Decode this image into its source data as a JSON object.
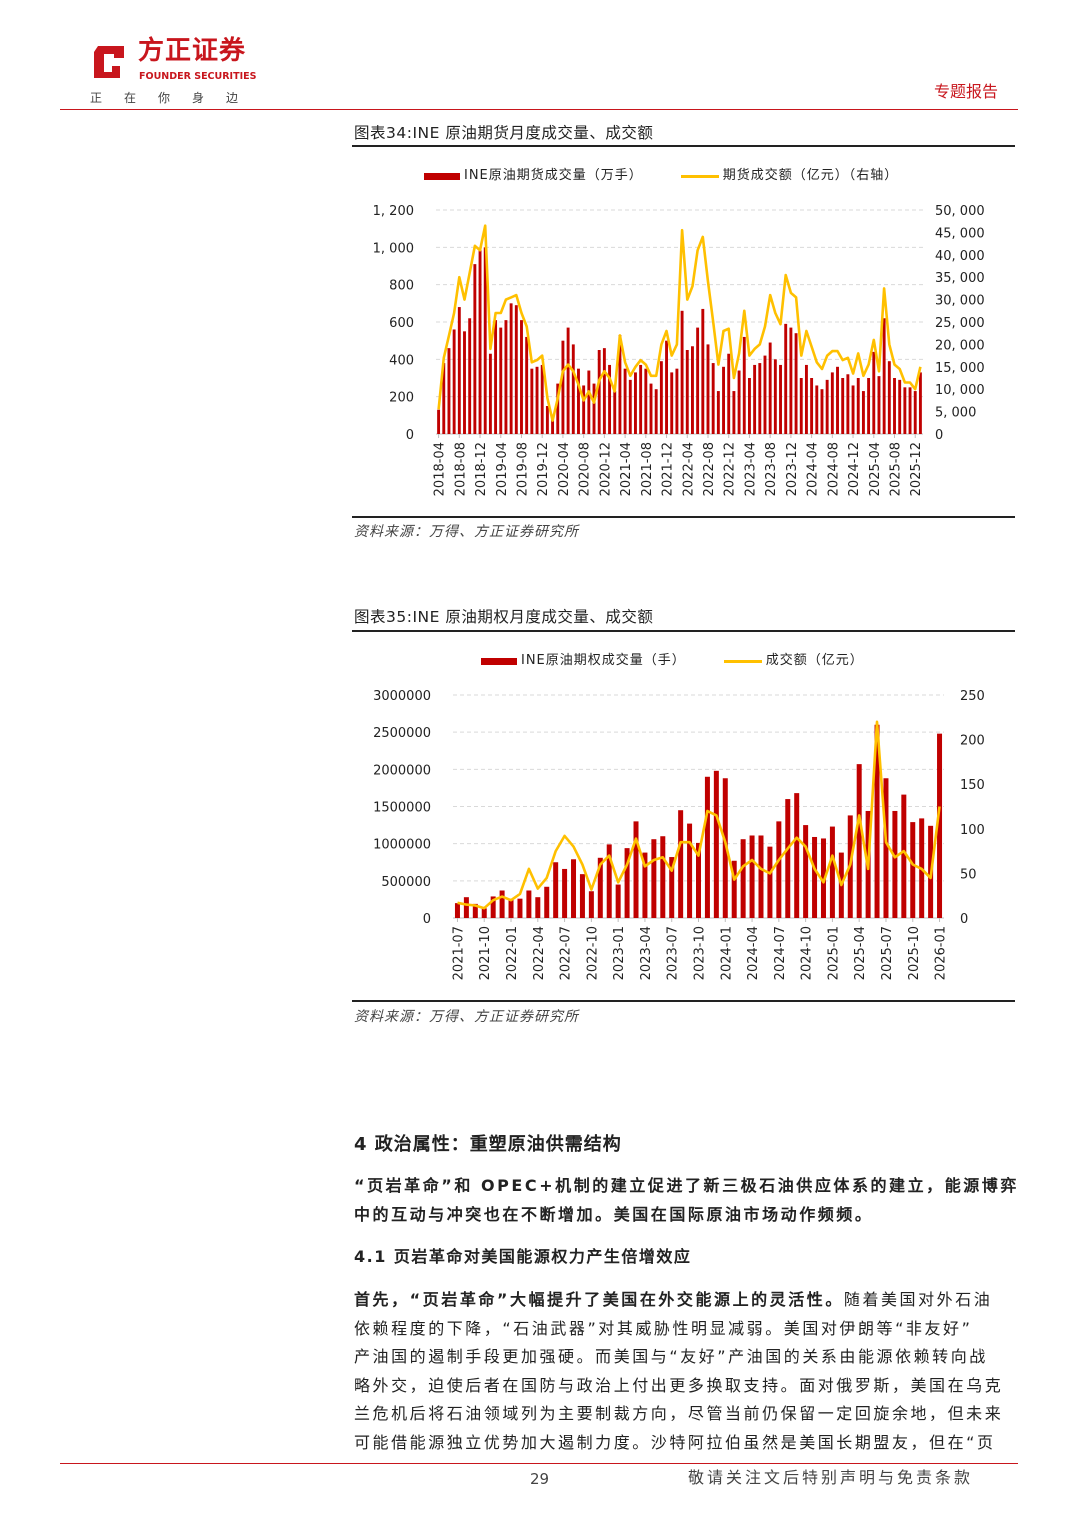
{
  "header": {
    "logo_cn": "方正证券",
    "logo_en": "FOUNDER SECURITIES",
    "slogan": "正在你身边",
    "report_type": "专题报告"
  },
  "figure34": {
    "title": "图表34:INE 原油期货月度成交量、成交额",
    "source": "资料来源：万得、方正证券研究所"
  },
  "figure35": {
    "title": "图表35:INE 原油期权月度成交量、成交额",
    "source": "资料来源：万得、方正证券研究所"
  },
  "chart_data": [
    {
      "type": "bar+line",
      "title": "INE 原油期货月度成交量、成交额",
      "legend_position": "top",
      "series": [
        {
          "name": "INE原油期货成交量（万手）",
          "type": "bar",
          "axis": "left",
          "color": "#c00000",
          "values": [
            130,
            380,
            460,
            560,
            680,
            550,
            620,
            910,
            990,
            1000,
            430,
            610,
            570,
            610,
            700,
            690,
            610,
            520,
            350,
            360,
            370,
            150,
            80,
            270,
            500,
            570,
            480,
            350,
            260,
            340,
            270,
            450,
            460,
            370,
            230,
            530,
            350,
            290,
            330,
            370,
            350,
            270,
            240,
            390,
            500,
            330,
            350,
            660,
            450,
            470,
            570,
            670,
            480,
            380,
            230,
            360,
            430,
            230,
            340,
            520,
            300,
            370,
            380,
            420,
            490,
            400,
            370,
            590,
            570,
            540,
            300,
            370,
            300,
            260,
            240,
            290,
            330,
            360,
            300,
            320,
            260,
            300,
            230,
            300,
            440,
            310,
            620,
            390,
            300,
            290,
            250,
            250,
            230,
            330
          ]
        },
        {
          "name": "期货成交额（亿元）（右轴）",
          "type": "line",
          "axis": "right",
          "color": "#ffc000",
          "values": [
            5500,
            17000,
            22000,
            27000,
            35000,
            30000,
            36000,
            42000,
            41000,
            46500,
            19000,
            27000,
            27000,
            30000,
            30500,
            31000,
            27000,
            24000,
            16000,
            16500,
            17500,
            8000,
            3000,
            8000,
            14000,
            15500,
            14000,
            11000,
            7500,
            9500,
            7000,
            12000,
            14000,
            12500,
            9500,
            22000,
            16000,
            13000,
            15000,
            16500,
            15500,
            13000,
            13000,
            20000,
            23000,
            17500,
            20000,
            45500,
            30000,
            33000,
            41000,
            44000,
            34000,
            25000,
            15500,
            23000,
            23500,
            12500,
            18000,
            27500,
            17500,
            19000,
            20000,
            24000,
            31000,
            27000,
            24500,
            35500,
            31500,
            30500,
            17500,
            23000,
            19500,
            16000,
            14500,
            17500,
            18500,
            18500,
            16500,
            17000,
            13500,
            18000,
            13000,
            15500,
            21000,
            14000,
            32500,
            20000,
            15500,
            14500,
            11500,
            11500,
            10000,
            15000
          ]
        }
      ],
      "start_month": "2018-04",
      "x_tick_labels": [
        "2018-04",
        "2018-08",
        "2018-12",
        "2019-04",
        "2019-08",
        "2019-12",
        "2020-04",
        "2020-08",
        "2020-12",
        "2021-04",
        "2021-08",
        "2021-12",
        "2022-04",
        "2022-08",
        "2022-12",
        "2023-04",
        "2023-08",
        "2023-12",
        "2024-04",
        "2024-08",
        "2024-12",
        "2025-04",
        "2025-08",
        "2025-12"
      ],
      "y_left": {
        "range": [
          0,
          1200
        ],
        "ticks": [
          "0",
          "200",
          "400",
          "600",
          "800",
          "1, 000",
          "1, 200"
        ]
      },
      "y_right": {
        "range": [
          0,
          50000
        ],
        "ticks": [
          "0",
          "5, 000",
          "10, 000",
          "15, 000",
          "20, 000",
          "25, 000",
          "30, 000",
          "35, 000",
          "40, 000",
          "45, 000",
          "50, 000"
        ]
      },
      "grid": true
    },
    {
      "type": "bar+line",
      "title": "INE 原油期权月度成交量、成交额",
      "legend_position": "top",
      "series": [
        {
          "name": "INE原油期权成交量（手）",
          "type": "bar",
          "axis": "left",
          "color": "#c00000",
          "values": [
            200000,
            280000,
            190000,
            130000,
            290000,
            370000,
            250000,
            260000,
            370000,
            280000,
            420000,
            750000,
            660000,
            790000,
            590000,
            360000,
            810000,
            990000,
            450000,
            940000,
            1300000,
            880000,
            1060000,
            1100000,
            820000,
            1450000,
            1270000,
            1010000,
            1900000,
            1980000,
            1880000,
            770000,
            1060000,
            1110000,
            1110000,
            960000,
            1300000,
            1600000,
            1680000,
            1250000,
            1090000,
            1070000,
            1230000,
            880000,
            1380000,
            2070000,
            1440000,
            2600000,
            1880000,
            1440000,
            1660000,
            1290000,
            1340000,
            1240000,
            2480000
          ]
        },
        {
          "name": "成交额（亿元）",
          "type": "line",
          "axis": "right",
          "color": "#ffc000",
          "values": [
            17,
            15,
            14,
            11,
            20,
            24,
            20,
            27,
            55,
            33,
            45,
            75,
            92,
            80,
            60,
            32,
            60,
            70,
            40,
            60,
            89,
            58,
            65,
            68,
            53,
            85,
            85,
            70,
            120,
            115,
            85,
            43,
            58,
            65,
            55,
            50,
            65,
            78,
            90,
            80,
            55,
            40,
            70,
            37,
            60,
            115,
            55,
            220,
            85,
            68,
            75,
            60,
            55,
            45,
            125
          ]
        }
      ],
      "start_month": "2021-07",
      "x_tick_labels": [
        "2021-07",
        "2021-10",
        "2022-01",
        "2022-04",
        "2022-07",
        "2022-10",
        "2023-01",
        "2023-04",
        "2023-07",
        "2023-10",
        "2024-01",
        "2024-04",
        "2024-07",
        "2024-10",
        "2025-01",
        "2025-04",
        "2025-07",
        "2025-10",
        "2026-01"
      ],
      "y_left": {
        "range": [
          0,
          3000000
        ],
        "ticks": [
          "0",
          "500000",
          "1000000",
          "1500000",
          "2000000",
          "2500000",
          "3000000"
        ]
      },
      "y_right": {
        "range": [
          0,
          250
        ],
        "ticks": [
          "0",
          "50",
          "100",
          "150",
          "200",
          "250"
        ]
      },
      "grid": true
    }
  ],
  "section4": {
    "heading": "4 政治属性：重塑原油供需结构",
    "intro_lines": [
      "“页岩革命”和 OPEC+机制的建立促进了新三极石油供应体系的建立，能源博弈",
      "中的互动与冲突也在不断增加。美国在国际原油市场动作频频。"
    ],
    "subheading": "4.1 页岩革命对美国能源权力产生倍增效应",
    "body_bold": "首先，“页岩革命”大幅提升了美国在外交能源上的灵活性。",
    "body_lines": [
      "随着美国对外石油",
      "依赖程度的下降，“石油武器”对其威胁性明显减弱。美国对伊朗等“非友好”",
      "产油国的遏制手段更加强硬。而美国与“友好”产油国的关系由能源依赖转向战",
      "略外交，迫使后者在国防与政治上付出更多换取支持。面对俄罗斯，美国在乌克",
      "兰危机后将石油领域列为主要制裁方向，尽管当前仍保留一定回旋余地，但未来",
      "可能借能源独立优势加大遏制力度。沙特阿拉伯虽然是美国长期盟友，但在“页"
    ]
  },
  "footer": {
    "page_number": "29",
    "disclaimer": "敬请关注文后特别声明与免责条款"
  }
}
